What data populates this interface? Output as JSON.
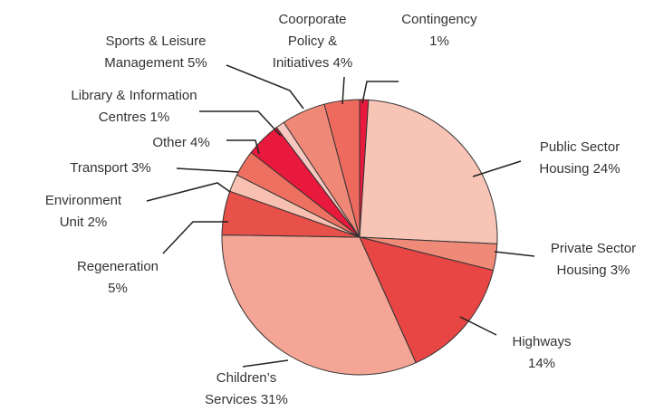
{
  "chart_data": {
    "type": "pie",
    "categories": [
      "Contingency",
      "Public Sector Housing",
      "Private Sector Housing",
      "Highways",
      "Children’s Services",
      "Regeneration",
      "Environment Unit",
      "Transport",
      "Other",
      "Library & Information Centres",
      "Sports & Leisure Management",
      "Coorporate Policy & Initiatives"
    ],
    "values": [
      1,
      24,
      3,
      14,
      31,
      5,
      2,
      3,
      4,
      1,
      5,
      4
    ],
    "value_labels": [
      "1%",
      "24%",
      "3%",
      "14%",
      "31%",
      "5%",
      "2%",
      "3%",
      "4%",
      "1%",
      "5%",
      "4%"
    ],
    "colors": [
      "#e8193c",
      "#f8c4b6",
      "#ef8a78",
      "#e84545",
      "#f4a595",
      "#e8504a",
      "#f8c0b0",
      "#ee7060",
      "#e8193c",
      "#f8c8c0",
      "#f08878",
      "#ee6a5e"
    ]
  }
}
